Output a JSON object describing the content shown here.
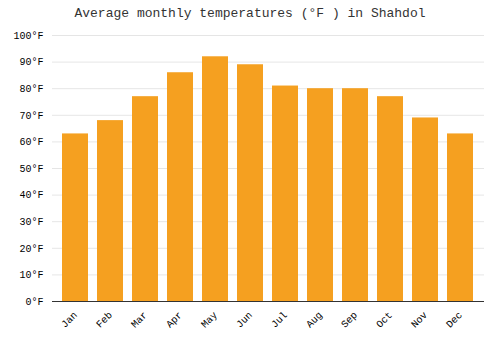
{
  "chart_data": {
    "type": "bar",
    "title": "Average monthly temperatures (°F ) in Shahdol",
    "categories": [
      "Jan",
      "Feb",
      "Mar",
      "Apr",
      "May",
      "Jun",
      "Jul",
      "Aug",
      "Sep",
      "Oct",
      "Nov",
      "Dec"
    ],
    "values": [
      63,
      68,
      77,
      86,
      92,
      89,
      81,
      80,
      80,
      77,
      69,
      63
    ],
    "color": "#F5A020",
    "ylim": [
      0,
      100
    ],
    "yticks": [
      {
        "value": 0,
        "label": "0°F"
      },
      {
        "value": 10,
        "label": "10°F"
      },
      {
        "value": 20,
        "label": "20°F"
      },
      {
        "value": 30,
        "label": "30°F"
      },
      {
        "value": 40,
        "label": "40°F"
      },
      {
        "value": 50,
        "label": "50°F"
      },
      {
        "value": 60,
        "label": "60°F"
      },
      {
        "value": 70,
        "label": "70°F"
      },
      {
        "value": 80,
        "label": "80°F"
      },
      {
        "value": 90,
        "label": "90°F"
      },
      {
        "value": 100,
        "label": "100°F"
      }
    ],
    "grid": true
  }
}
